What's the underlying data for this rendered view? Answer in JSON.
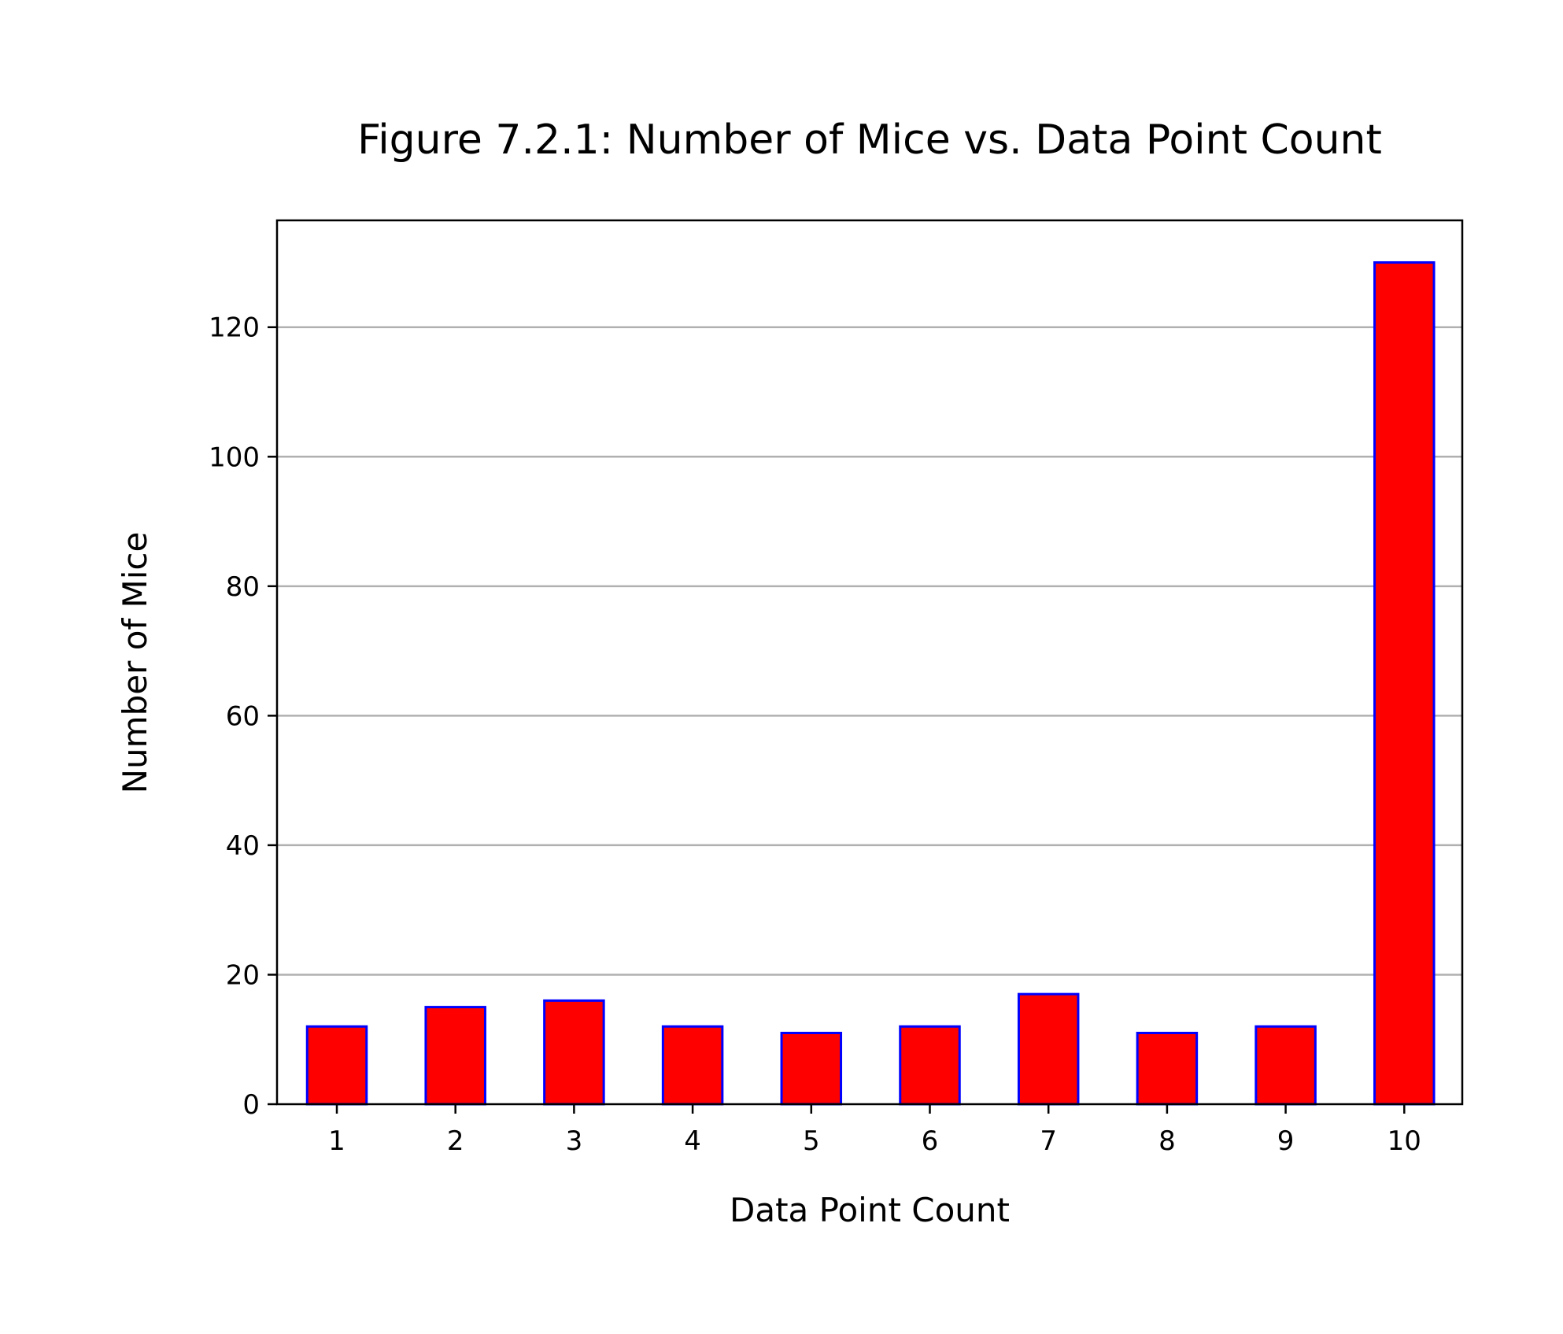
{
  "chart_data": {
    "type": "bar",
    "title": "Figure 7.2.1: Number of Mice vs. Data Point Count",
    "xlabel": "Data Point Count",
    "ylabel": "Number of Mice",
    "categories": [
      "1",
      "2",
      "3",
      "4",
      "5",
      "6",
      "7",
      "8",
      "9",
      "10"
    ],
    "values": [
      12,
      15,
      16,
      12,
      11,
      12,
      17,
      11,
      12,
      130
    ],
    "ylim": [
      0,
      136.5
    ],
    "yticks": [
      "0",
      "20",
      "40",
      "60",
      "80",
      "100",
      "120"
    ],
    "grid": "horizontal",
    "legend": "none",
    "colors": {
      "bar_fill": "#ff0000",
      "bar_edge": "#0000ff",
      "grid": "#b0b0b0",
      "axes": "#000000"
    }
  }
}
